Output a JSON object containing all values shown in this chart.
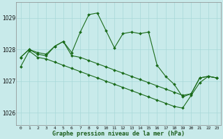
{
  "xlabel": "Graphe pression niveau de la mer (hPa)",
  "xlim": [
    -0.5,
    23.5
  ],
  "ylim": [
    1025.6,
    1029.5
  ],
  "yticks": [
    1026,
    1027,
    1028,
    1029
  ],
  "xtick_labels": [
    "0",
    "1",
    "2",
    "3",
    "4",
    "5",
    "6",
    "7",
    "8",
    "9",
    "10",
    "11",
    "12",
    "13",
    "14",
    "15",
    "16",
    "17",
    "18",
    "19",
    "20",
    "21",
    "22",
    "23"
  ],
  "background_color": "#c8eaea",
  "grid_color": "#a8d8d8",
  "line_color": "#1a6b1a",
  "series": [
    {
      "x": [
        0,
        1,
        2,
        3,
        4,
        5,
        6,
        7,
        8,
        9,
        10,
        11,
        12,
        13,
        14,
        15,
        16,
        17,
        18,
        19,
        20,
        21,
        22,
        23
      ],
      "y": [
        1027.75,
        1028.0,
        1027.9,
        1027.85,
        1028.1,
        1028.25,
        1027.9,
        1028.55,
        1029.1,
        1029.15,
        1028.6,
        1028.05,
        1028.5,
        1028.55,
        1028.5,
        1028.55,
        1027.5,
        1027.15,
        1026.9,
        1026.5,
        1026.6,
        1027.1,
        1027.15,
        1027.1
      ]
    },
    {
      "x": [
        0,
        1,
        2,
        3,
        4,
        5,
        6,
        7,
        8,
        9,
        10,
        11,
        12,
        13,
        14,
        15,
        16,
        17,
        18,
        19,
        20,
        21,
        22,
        23
      ],
      "y": [
        1027.75,
        1028.0,
        1027.85,
        1027.8,
        1028.1,
        1028.25,
        1027.8,
        1027.75,
        1027.65,
        1027.55,
        1027.45,
        1027.35,
        1027.25,
        1027.15,
        1027.05,
        1026.95,
        1026.85,
        1026.75,
        1026.65,
        1026.55,
        1026.6,
        1027.1,
        1027.15,
        1027.1
      ]
    },
    {
      "x": [
        0,
        1,
        2,
        3,
        4,
        5,
        6,
        7,
        8,
        9,
        10,
        11,
        12,
        13,
        14,
        15,
        16,
        17,
        18,
        19,
        20,
        21,
        22,
        23
      ],
      "y": [
        1027.45,
        1027.95,
        1027.75,
        1027.7,
        1027.6,
        1027.5,
        1027.4,
        1027.3,
        1027.2,
        1027.1,
        1027.0,
        1026.9,
        1026.8,
        1026.7,
        1026.6,
        1026.5,
        1026.4,
        1026.3,
        1026.2,
        1026.15,
        1026.55,
        1026.95,
        1027.15,
        1027.1
      ]
    }
  ]
}
